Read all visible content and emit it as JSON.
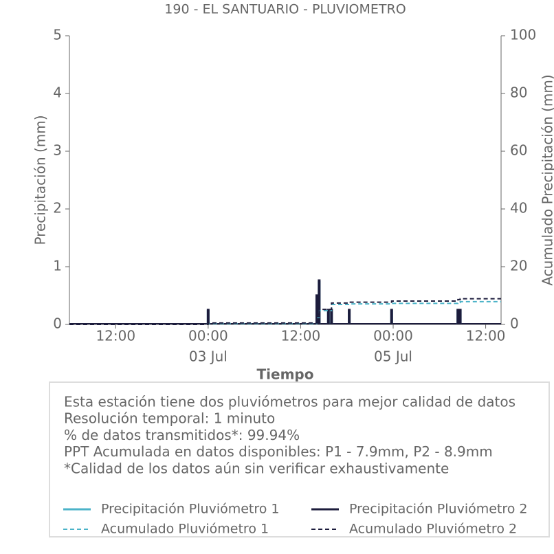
{
  "chart_data": {
    "type": "line",
    "title": "190 - EL SANTUARIO - PLUVIOMETRO",
    "xlabel": "Tiempo",
    "ylabel": "Precipitación (mm)",
    "y2label": "Acumulado Precipitación (mm)",
    "xlim": [
      -18,
      38
    ],
    "xticks": [
      {
        "value": -12,
        "label": "12:00"
      },
      {
        "value": 0,
        "label": "00:00"
      },
      {
        "value": 12,
        "label": "12:00"
      },
      {
        "value": 24,
        "label": "00:00"
      },
      {
        "value": 36,
        "label": "12:00"
      }
    ],
    "xtick_dates": [
      {
        "value": 0,
        "label": "03 Jul"
      },
      {
        "value": 24,
        "label": "05 Jul"
      }
    ],
    "ylim": [
      0,
      5
    ],
    "yticks": [
      0,
      1,
      2,
      3,
      4,
      5
    ],
    "y2lim": [
      0,
      100
    ],
    "y2ticks": [
      0,
      20,
      40,
      60,
      80,
      100
    ],
    "series": [
      {
        "name": "Precipitación Pluviómetro 1",
        "color": "#4bb3c8",
        "kind": "spike",
        "linestyle": "solid",
        "x": [
          0,
          14.1,
          14.4,
          15.6,
          16.0,
          18.3,
          23.8,
          32.4,
          32.7
        ],
        "values": [
          0.25,
          0.5,
          0.75,
          0.25,
          0.25,
          0.25,
          0.25,
          0.25,
          0.25
        ]
      },
      {
        "name": "Precipitación Pluviómetro 2",
        "color": "#1c1c3c",
        "kind": "spike",
        "linestyle": "solid",
        "x": [
          0,
          14.1,
          14.4,
          15.6,
          16.0,
          18.3,
          23.8,
          32.4,
          32.7
        ],
        "values": [
          0.27,
          0.52,
          0.78,
          0.27,
          0.27,
          0.27,
          0.27,
          0.27,
          0.27
        ]
      },
      {
        "name": "Acumulado Pluviómetro 1",
        "color": "#4bb3c8",
        "kind": "step",
        "linestyle": "dashed",
        "axis": "y2",
        "x": [
          -18,
          0,
          14.1,
          14.4,
          16.0,
          18.3,
          23.8,
          32.4,
          32.7,
          38
        ],
        "values": [
          0,
          0.3,
          2.4,
          4.8,
          6.9,
          7.1,
          7.3,
          7.6,
          7.9,
          7.9
        ]
      },
      {
        "name": "Acumulado Pluviómetro 2",
        "color": "#1c1c3c",
        "kind": "step",
        "linestyle": "dashed",
        "axis": "y2",
        "x": [
          -18,
          0,
          14.1,
          14.4,
          16.0,
          18.3,
          23.8,
          32.4,
          32.7,
          38
        ],
        "values": [
          0,
          0.5,
          2.7,
          5.2,
          7.4,
          7.7,
          8.1,
          8.6,
          8.9,
          8.9
        ]
      }
    ],
    "annotations": [
      "Esta estación tiene dos pluviómetros para mejor calidad de datos",
      "Resolución temporal: 1 minuto",
      "% de datos transmitidos*: 99.94%",
      "PPT Acumulada en datos disponibles: P1 - 7.9mm, P2 - 8.9mm",
      "*Calidad de los datos aún sin verificar exhaustivamente"
    ]
  }
}
